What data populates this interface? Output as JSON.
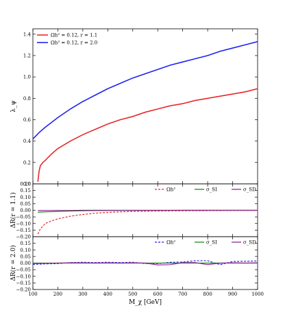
{
  "chart_data": [
    {
      "type": "line",
      "panel": "top",
      "xlabel": "",
      "ylabel": "λ_ψ",
      "xlim": [
        100,
        1000
      ],
      "ylim": [
        0.0,
        1.45
      ],
      "yticks": [
        0.0,
        0.2,
        0.4,
        0.6,
        0.8,
        1.0,
        1.2,
        1.4
      ],
      "ytick_labels": [
        "0.0",
        "0.2",
        "0.4",
        "0.6",
        "0.8",
        "1.0",
        "1.2",
        "1.4"
      ],
      "legend_position": "top-left",
      "series": [
        {
          "name": "Ωh² = 0.12, r = 1.1",
          "color": "#e8282b",
          "style": "solid",
          "x": [
            120,
            125,
            130,
            140,
            150,
            175,
            200,
            250,
            300,
            350,
            400,
            450,
            500,
            550,
            600,
            650,
            700,
            750,
            800,
            850,
            900,
            950,
            1000
          ],
          "y": [
            0.02,
            0.12,
            0.17,
            0.2,
            0.22,
            0.28,
            0.33,
            0.4,
            0.46,
            0.51,
            0.56,
            0.6,
            0.63,
            0.67,
            0.7,
            0.73,
            0.75,
            0.78,
            0.8,
            0.82,
            0.84,
            0.86,
            0.89
          ]
        },
        {
          "name": "Ωh² = 0.12, r = 2.0",
          "color": "#2020f0",
          "style": "solid",
          "x": [
            100,
            125,
            150,
            200,
            250,
            300,
            350,
            400,
            450,
            500,
            550,
            600,
            650,
            700,
            750,
            800,
            850,
            900,
            950,
            1000
          ],
          "y": [
            0.42,
            0.48,
            0.53,
            0.62,
            0.7,
            0.77,
            0.83,
            0.89,
            0.94,
            0.99,
            1.03,
            1.07,
            1.11,
            1.14,
            1.17,
            1.2,
            1.24,
            1.27,
            1.3,
            1.33
          ]
        }
      ]
    },
    {
      "type": "line",
      "panel": "middle",
      "xlabel": "",
      "ylabel": "ΔR(r = 1.1)",
      "xlim": [
        100,
        1000
      ],
      "ylim": [
        -0.2,
        0.2
      ],
      "yticks": [
        -0.2,
        -0.15,
        -0.1,
        -0.05,
        0.0,
        0.05,
        0.1,
        0.15,
        0.2
      ],
      "ytick_labels": [
        "−0.20",
        "−0.15",
        "−0.10",
        "−0.05",
        "0.00",
        "0.05",
        "0.10",
        "0.15",
        "0.20"
      ],
      "legend_position": "top-right",
      "series": [
        {
          "name": "Ωh²",
          "color": "#e8282b",
          "style": "dashed",
          "x": [
            120,
            125,
            130,
            140,
            150,
            175,
            200,
            250,
            300,
            350,
            400,
            450,
            500,
            600,
            700,
            800,
            900,
            1000
          ],
          "y": [
            -0.18,
            -0.16,
            -0.14,
            -0.12,
            -0.1,
            -0.08,
            -0.065,
            -0.045,
            -0.032,
            -0.022,
            -0.016,
            -0.012,
            -0.009,
            -0.006,
            -0.004,
            -0.003,
            -0.002,
            -0.001
          ]
        },
        {
          "name": "σ_SI",
          "color": "#1a8a1a",
          "style": "solid",
          "x": [
            120,
            150,
            200,
            250,
            300,
            400,
            500,
            600,
            700,
            800,
            900,
            1000
          ],
          "y": [
            -0.015,
            -0.012,
            -0.009,
            -0.006,
            -0.004,
            -0.002,
            -0.001,
            -0.001,
            0.0,
            0.0,
            0.0,
            0.0
          ]
        },
        {
          "name": "σ_SD",
          "color": "#8e2a8e",
          "style": "solid",
          "x": [
            120,
            150,
            200,
            250,
            300,
            400,
            500,
            600,
            700,
            800,
            900,
            1000
          ],
          "y": [
            -0.002,
            -0.002,
            -0.001,
            -0.001,
            0.0,
            0.0,
            0.0,
            0.0,
            0.0,
            0.0,
            0.0,
            0.0
          ]
        }
      ]
    },
    {
      "type": "line",
      "panel": "bottom",
      "xlabel": "M_χ [GeV]",
      "ylabel": "ΔR(r = 2.0)",
      "xlim": [
        100,
        1000
      ],
      "ylim": [
        -0.2,
        0.2
      ],
      "xticks": [
        100,
        200,
        300,
        400,
        500,
        600,
        700,
        800,
        900,
        1000
      ],
      "xtick_labels": [
        "100",
        "200",
        "300",
        "400",
        "500",
        "600",
        "700",
        "800",
        "900",
        "1000"
      ],
      "yticks": [
        -0.2,
        -0.15,
        -0.1,
        -0.05,
        0.0,
        0.05,
        0.1,
        0.15
      ],
      "ytick_labels": [
        "−0.20",
        "−0.15",
        "−0.10",
        "−0.05",
        "0.00",
        "0.05",
        "0.10",
        "0.15"
      ],
      "legend_position": "top-right",
      "series": [
        {
          "name": "Ωh²",
          "color": "#2020f0",
          "style": "dashed",
          "x": [
            100,
            150,
            200,
            250,
            300,
            350,
            400,
            450,
            500,
            550,
            600,
            650,
            700,
            750,
            800,
            850,
            900,
            950,
            1000
          ],
          "y": [
            -0.01,
            -0.006,
            -0.004,
            0.004,
            0.006,
            0.004,
            0.006,
            0.004,
            0.006,
            -0.004,
            -0.004,
            0.006,
            0.008,
            0.018,
            0.018,
            -0.012,
            0.012,
            0.014,
            0.016
          ]
        },
        {
          "name": "σ_SI",
          "color": "#1a8a1a",
          "style": "solid",
          "x": [
            100,
            200,
            300,
            400,
            500,
            600,
            700,
            800,
            900,
            1000
          ],
          "y": [
            0.0,
            0.0,
            0.0,
            0.0,
            0.0,
            0.0,
            0.0,
            0.0,
            0.0,
            0.0
          ]
        },
        {
          "name": "σ_SD",
          "color": "#8e2a8e",
          "style": "solid",
          "x": [
            100,
            150,
            200,
            250,
            300,
            350,
            400,
            450,
            500,
            550,
            600,
            650,
            700,
            750,
            800,
            850,
            900,
            950,
            1000
          ],
          "y": [
            -0.004,
            -0.002,
            0.0,
            0.002,
            0.002,
            0.0,
            0.002,
            0.0,
            0.002,
            0.0,
            -0.014,
            -0.012,
            0.004,
            0.004,
            -0.012,
            0.0,
            0.002,
            0.0,
            0.002
          ]
        }
      ]
    }
  ]
}
